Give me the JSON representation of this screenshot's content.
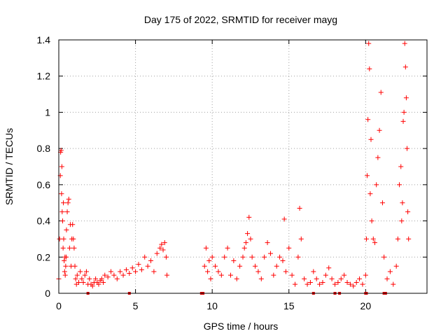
{
  "chart_data": {
    "type": "scatter",
    "title": "Day 175 of 2022, SRMTID for receiver mayg",
    "xlabel": "GPS time / hours",
    "ylabel": "SRMTID / TECUs",
    "xlim": [
      0,
      24
    ],
    "ylim": [
      0,
      1.4
    ],
    "xticks": [
      0,
      5,
      10,
      15,
      20
    ],
    "xtick_labels": [
      "0",
      "5",
      "10",
      "15",
      "20"
    ],
    "yticks": [
      0,
      0.2,
      0.4,
      0.6,
      0.8,
      1.0,
      1.2,
      1.4
    ],
    "ytick_labels": [
      "0",
      "0.2",
      "0.4",
      "0.6",
      "0.8",
      "1",
      "1.2",
      "1.4"
    ],
    "grid": true,
    "marker": "+",
    "color": "#ff0000",
    "series": [
      {
        "name": "SRMTID",
        "x": [
          0.0,
          0.05,
          0.1,
          0.12,
          0.15,
          0.18,
          0.2,
          0.22,
          0.25,
          0.28,
          0.3,
          0.32,
          0.35,
          0.38,
          0.4,
          0.42,
          0.45,
          0.48,
          0.5,
          0.55,
          0.6,
          0.65,
          0.7,
          0.75,
          0.8,
          0.85,
          0.9,
          0.95,
          1.0,
          1.05,
          1.1,
          1.15,
          1.2,
          1.3,
          1.4,
          1.5,
          1.6,
          1.7,
          1.8,
          1.9,
          2.0,
          2.1,
          2.2,
          2.3,
          2.4,
          2.5,
          2.6,
          2.7,
          2.8,
          2.9,
          3.0,
          3.2,
          3.4,
          3.6,
          3.8,
          4.0,
          4.2,
          4.4,
          4.6,
          4.8,
          5.0,
          5.2,
          5.4,
          5.6,
          5.8,
          6.0,
          6.2,
          6.4,
          6.6,
          6.7,
          6.8,
          6.9,
          7.0,
          7.05,
          9.5,
          9.6,
          9.7,
          9.8,
          9.9,
          10.0,
          10.2,
          10.4,
          10.6,
          10.8,
          11.0,
          11.2,
          11.4,
          11.6,
          11.8,
          12.0,
          12.1,
          12.2,
          12.3,
          12.4,
          12.5,
          12.6,
          12.8,
          13.0,
          13.2,
          13.4,
          13.6,
          13.8,
          14.0,
          14.2,
          14.4,
          14.6,
          14.7,
          14.8,
          15.0,
          15.2,
          15.4,
          15.6,
          15.7,
          15.8,
          16.0,
          16.2,
          16.4,
          16.6,
          16.8,
          17.0,
          17.2,
          17.4,
          17.6,
          17.8,
          18.0,
          18.2,
          18.4,
          18.6,
          18.8,
          19.0,
          19.2,
          19.4,
          19.6,
          19.8,
          20.0,
          20.05,
          20.1,
          20.15,
          20.2,
          20.25,
          20.3,
          20.35,
          20.4,
          20.5,
          20.6,
          20.7,
          20.8,
          20.9,
          21.0,
          21.1,
          21.2,
          21.4,
          21.6,
          21.8,
          22.0,
          22.1,
          22.2,
          22.3,
          22.35,
          22.4,
          22.45,
          22.5,
          22.55,
          22.6,
          22.65,
          22.7,
          22.75,
          22.8
        ],
        "y": [
          0.08,
          0.3,
          0.65,
          0.78,
          0.79,
          0.55,
          0.7,
          0.45,
          0.4,
          0.25,
          0.5,
          0.3,
          0.18,
          0.12,
          0.2,
          0.1,
          0.15,
          0.2,
          0.35,
          0.45,
          0.5,
          0.52,
          0.25,
          0.38,
          0.15,
          0.3,
          0.38,
          0.3,
          0.25,
          0.15,
          0.08,
          0.05,
          0.1,
          0.06,
          0.12,
          0.08,
          0.06,
          0.1,
          0.12,
          0.05,
          0.08,
          0.05,
          0.04,
          0.06,
          0.08,
          0.06,
          0.05,
          0.07,
          0.08,
          0.06,
          0.1,
          0.09,
          0.12,
          0.1,
          0.08,
          0.12,
          0.1,
          0.13,
          0.11,
          0.14,
          0.12,
          0.16,
          0.13,
          0.2,
          0.15,
          0.18,
          0.12,
          0.22,
          0.25,
          0.27,
          0.24,
          0.28,
          0.2,
          0.1,
          0.15,
          0.25,
          0.12,
          0.18,
          0.08,
          0.2,
          0.15,
          0.12,
          0.1,
          0.2,
          0.25,
          0.1,
          0.18,
          0.08,
          0.15,
          0.2,
          0.25,
          0.28,
          0.33,
          0.42,
          0.3,
          0.2,
          0.15,
          0.12,
          0.08,
          0.2,
          0.28,
          0.22,
          0.1,
          0.15,
          0.2,
          0.18,
          0.41,
          0.12,
          0.25,
          0.1,
          0.05,
          0.2,
          0.47,
          0.3,
          0.08,
          0.05,
          0.06,
          0.12,
          0.08,
          0.05,
          0.06,
          0.1,
          0.14,
          0.08,
          0.05,
          0.06,
          0.08,
          0.1,
          0.06,
          0.05,
          0.04,
          0.06,
          0.08,
          0.05,
          0.1,
          0.3,
          0.65,
          0.96,
          1.38,
          1.24,
          0.55,
          0.85,
          0.4,
          0.3,
          0.28,
          0.6,
          0.75,
          0.9,
          1.11,
          0.5,
          0.2,
          0.08,
          0.12,
          0.05,
          0.15,
          0.3,
          0.6,
          0.7,
          0.4,
          0.5,
          0.95,
          1.0,
          1.38,
          1.25,
          1.08,
          0.8,
          0.45,
          0.3
        ]
      }
    ],
    "bottom_markers_x": [
      1.9,
      4.6,
      9.3,
      9.4,
      16.6,
      18.0,
      18.3,
      20.0,
      20.05,
      21.2,
      21.3
    ]
  }
}
